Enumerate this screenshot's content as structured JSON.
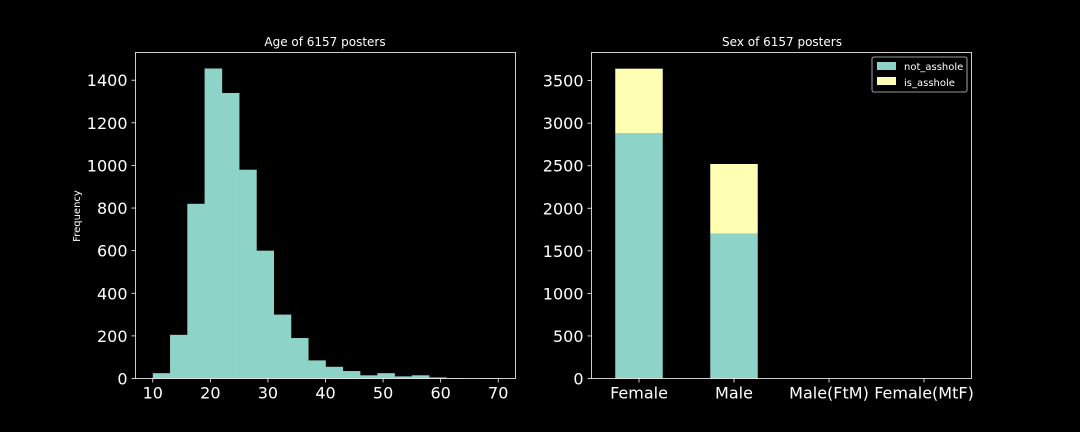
{
  "figure": {
    "background": "#000000",
    "text_color": "#ffffff"
  },
  "chart_data": [
    {
      "type": "bar",
      "subtype": "histogram",
      "title": "Age of 6157 posters",
      "xlabel": "",
      "ylabel": "Frequency",
      "xlim": [
        7,
        73
      ],
      "ylim": [
        0,
        1530
      ],
      "xticks": [
        10,
        20,
        30,
        40,
        50,
        60,
        70
      ],
      "yticks": [
        0,
        200,
        400,
        600,
        800,
        1000,
        1200,
        1400
      ],
      "color": "#8dd3c7",
      "bins": [
        {
          "x0": 10,
          "x1": 13,
          "value": 25
        },
        {
          "x0": 13,
          "x1": 16,
          "value": 205
        },
        {
          "x0": 16,
          "x1": 19,
          "value": 820
        },
        {
          "x0": 19,
          "x1": 22,
          "value": 1455
        },
        {
          "x0": 22,
          "x1": 25,
          "value": 1340
        },
        {
          "x0": 25,
          "x1": 28,
          "value": 980
        },
        {
          "x0": 28,
          "x1": 31,
          "value": 600
        },
        {
          "x0": 31,
          "x1": 34,
          "value": 300
        },
        {
          "x0": 34,
          "x1": 37,
          "value": 190
        },
        {
          "x0": 37,
          "x1": 40,
          "value": 85
        },
        {
          "x0": 40,
          "x1": 43,
          "value": 55
        },
        {
          "x0": 43,
          "x1": 46,
          "value": 35
        },
        {
          "x0": 46,
          "x1": 49,
          "value": 15
        },
        {
          "x0": 49,
          "x1": 52,
          "value": 25
        },
        {
          "x0": 52,
          "x1": 55,
          "value": 10
        },
        {
          "x0": 55,
          "x1": 58,
          "value": 15
        },
        {
          "x0": 58,
          "x1": 61,
          "value": 5
        },
        {
          "x0": 61,
          "x1": 64,
          "value": 1
        },
        {
          "x0": 64,
          "x1": 67,
          "value": 0
        },
        {
          "x0": 67,
          "x1": 70,
          "value": 1
        }
      ],
      "grid": false
    },
    {
      "type": "bar",
      "subtype": "stacked",
      "title": "Sex of 6157 posters",
      "xlabel": "",
      "ylabel": "",
      "categories": [
        "Female",
        "Male",
        "Male(FtM)",
        "Female(MtF)"
      ],
      "ylim": [
        0,
        3830
      ],
      "yticks": [
        0,
        500,
        1000,
        1500,
        2000,
        2500,
        3000,
        3500
      ],
      "series": [
        {
          "name": "not_asshole",
          "color": "#8dd3c7",
          "values": [
            2880,
            1700,
            0,
            0
          ]
        },
        {
          "name": "is_asshole",
          "color": "#ffffb3",
          "values": [
            760,
            820,
            0,
            0
          ]
        }
      ],
      "legend": "top-right",
      "grid": false
    }
  ]
}
